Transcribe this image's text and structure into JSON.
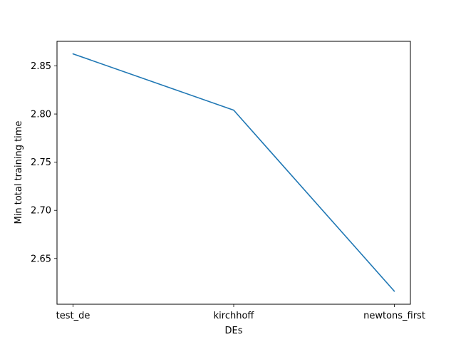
{
  "chart_data": {
    "type": "line",
    "title": "",
    "xlabel": "DEs",
    "ylabel": "Min total training time",
    "categories": [
      "test_de",
      "kirchhoff",
      "newtons_first"
    ],
    "series": [
      {
        "values": [
          2.8625,
          2.804,
          2.616
        ],
        "color": "#1f77b4"
      }
    ],
    "ylim": [
      2.6025,
      2.8755
    ],
    "yticks": [
      2.65,
      2.7,
      2.75,
      2.8,
      2.85
    ],
    "ytick_labels": [
      "2.65",
      "2.70",
      "2.75",
      "2.80",
      "2.85"
    ],
    "grid": false,
    "legend": "none"
  }
}
